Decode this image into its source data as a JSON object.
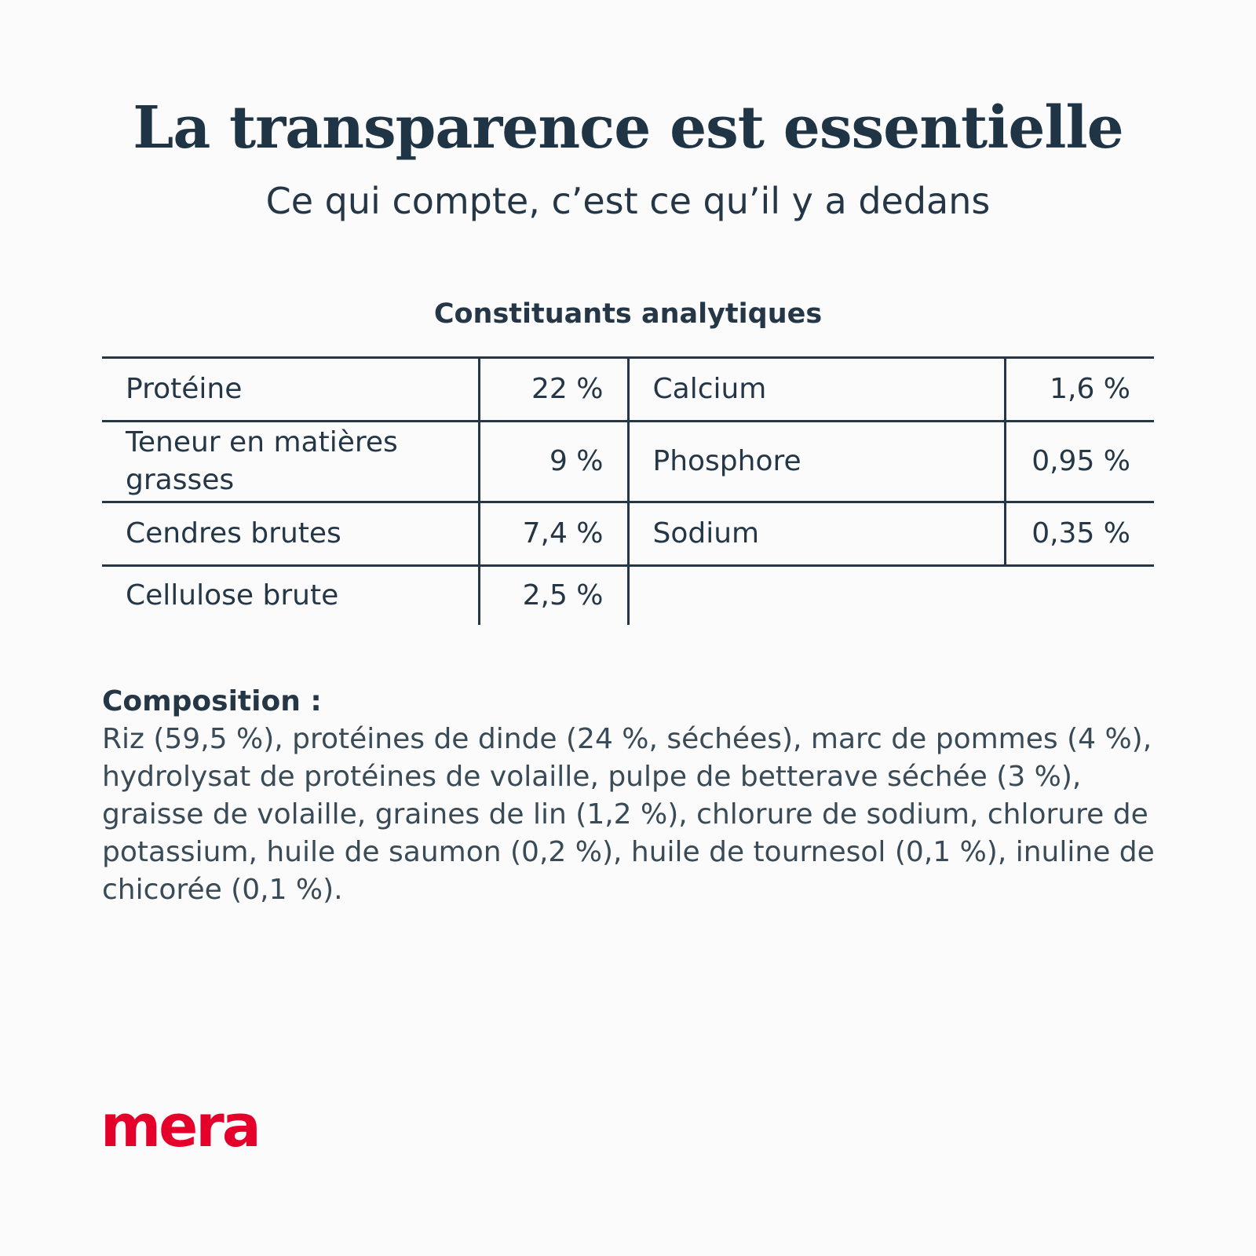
{
  "header": {
    "title": "La transparence est essentielle",
    "subtitle": "Ce qui compte, c’est ce qu’il y a dedans"
  },
  "analytical_table": {
    "heading": "Constituants analytiques",
    "rows": [
      {
        "left_name": "Protéine",
        "left_value": "22 %",
        "right_name": "Calcium",
        "right_value": "1,6 %"
      },
      {
        "left_name": "Teneur en matières grasses",
        "left_value": "9 %",
        "right_name": "Phosphore",
        "right_value": "0,95 %"
      },
      {
        "left_name": "Cendres brutes",
        "left_value": "7,4 %",
        "right_name": "Sodium",
        "right_value": "0,35 %"
      },
      {
        "left_name": "Cellulose brute",
        "left_value": "2,5 %"
      }
    ]
  },
  "composition": {
    "label": "Composition :",
    "text": "Riz (59,5 %), protéines de dinde (24 %, séchées), marc de pommes (4 %), hydrolysat de protéines de volaille, pulpe de betterave séchée (3 %), graisse de volaille, graines de lin (1,2 %), chlorure de sodium, chlorure de potassium, huile de saumon (0,2 %), huile de tournesol (0,1 %), inuline de chicorée (0,1 %)."
  },
  "brand": {
    "logo_text": "mera",
    "logo_color": "#e4002b",
    "text_color": "#253746",
    "background": "#fbfbfb"
  }
}
